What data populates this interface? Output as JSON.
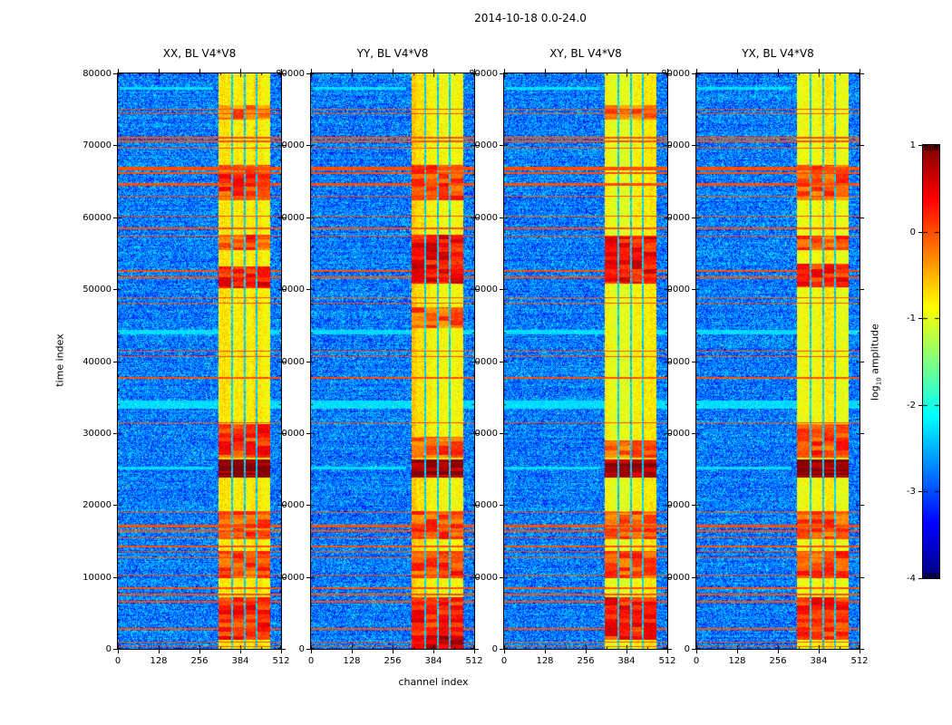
{
  "figure": {
    "title": "2014-10-18 0.0-24.0",
    "xlabel": "channel index",
    "ylabel": "time index",
    "colorbar_label": {
      "prefix": "log",
      "sub": "10",
      "rest": " amplitude"
    }
  },
  "chart_data": {
    "type": "heatmap",
    "title": "2014-10-18 0.0-24.0",
    "xlabel": "channel index",
    "ylabel": "time index",
    "value_label": "log10 amplitude",
    "colormap": "jet",
    "grid": false,
    "x_range": [
      0,
      512
    ],
    "y_range": [
      0,
      80000
    ],
    "x_ticks": [
      0,
      128,
      256,
      384,
      512
    ],
    "x_minor_step": 64,
    "y_ticks": [
      0,
      10000,
      20000,
      30000,
      40000,
      50000,
      60000,
      70000,
      80000
    ],
    "y_minor_step": 2000,
    "colorbar": {
      "range": [
        -4,
        1
      ],
      "ticks": [
        1,
        0,
        -1,
        -2,
        -3,
        -4
      ]
    },
    "panels": [
      {
        "title": "XX, BL V4*V8",
        "seed": 11,
        "events": [
          [
            23800,
            26300,
            0.66
          ],
          [
            26600,
            31200,
            -0.05
          ],
          [
            50200,
            53200,
            0.1
          ],
          [
            55400,
            57600,
            -0.15
          ],
          [
            62300,
            67300,
            -0.1
          ],
          [
            15200,
            19200,
            -0.25
          ],
          [
            9800,
            13600,
            -0.18
          ],
          [
            1200,
            7200,
            0.0
          ],
          [
            73600,
            75600,
            -0.35
          ]
        ]
      },
      {
        "title": "YY, BL V4*V8",
        "seed": 23,
        "events": [
          [
            23800,
            26300,
            0.66
          ],
          [
            26600,
            29500,
            -0.2
          ],
          [
            50800,
            57600,
            0.18
          ],
          [
            62300,
            67300,
            -0.1
          ],
          [
            15200,
            19200,
            -0.2
          ],
          [
            9800,
            13600,
            -0.15
          ],
          [
            1200,
            7200,
            0.08
          ],
          [
            0,
            1900,
            0.45
          ],
          [
            44600,
            47500,
            -0.3
          ]
        ]
      },
      {
        "title": "XY, BL V4*V8",
        "seed": 37,
        "events": [
          [
            23800,
            26300,
            0.6
          ],
          [
            50800,
            57300,
            0.15
          ],
          [
            26600,
            29000,
            -0.25
          ],
          [
            15200,
            19200,
            -0.25
          ],
          [
            9800,
            13600,
            -0.2
          ],
          [
            1200,
            7200,
            0.05
          ],
          [
            73600,
            75600,
            -0.35
          ]
        ]
      },
      {
        "title": "YX, BL V4*V8",
        "seed": 51,
        "events": [
          [
            23800,
            26300,
            0.66
          ],
          [
            26600,
            31200,
            -0.15
          ],
          [
            50300,
            53500,
            0.08
          ],
          [
            55400,
            57400,
            -0.2
          ],
          [
            15200,
            19200,
            -0.22
          ],
          [
            9800,
            13600,
            -0.18
          ],
          [
            1200,
            7200,
            0.02
          ],
          [
            62300,
            67300,
            -0.25
          ]
        ]
      }
    ],
    "band": {
      "start": 316,
      "end": 477,
      "gaps": [
        358,
        398,
        435
      ],
      "gap_width": 5,
      "base_level": -1.05
    },
    "noise_level": -3.35,
    "stripes": [
      [
        75050,
        180
      ],
      [
        74350,
        160
      ],
      [
        71050,
        150
      ],
      [
        70550,
        150
      ],
      [
        69650,
        130
      ],
      [
        66750,
        430
      ],
      [
        66150,
        180
      ],
      [
        64550,
        430
      ],
      [
        62950,
        200
      ],
      [
        60150,
        170
      ],
      [
        58450,
        170
      ],
      [
        57350,
        150
      ],
      [
        52550,
        220
      ],
      [
        51650,
        170
      ],
      [
        48850,
        170
      ],
      [
        48050,
        170
      ],
      [
        41350,
        170
      ],
      [
        40650,
        170
      ],
      [
        37650,
        190
      ],
      [
        31450,
        150
      ],
      [
        18950,
        170
      ],
      [
        17050,
        320
      ],
      [
        16350,
        200
      ],
      [
        15450,
        170
      ],
      [
        14250,
        330
      ],
      [
        13550,
        170
      ],
      [
        12650,
        170
      ],
      [
        10250,
        190
      ],
      [
        8450,
        170
      ],
      [
        7550,
        170
      ],
      [
        6550,
        150
      ],
      [
        2750,
        210
      ],
      [
        950,
        210
      ],
      [
        350,
        160
      ]
    ],
    "stripe_level": -0.15,
    "cyan_bands": [
      [
        77900,
        400,
        -2.45,
        300
      ],
      [
        44050,
        700,
        -2.45,
        512
      ],
      [
        33950,
        1100,
        -2.45,
        512
      ],
      [
        25150,
        350,
        -2.45,
        300
      ]
    ]
  }
}
